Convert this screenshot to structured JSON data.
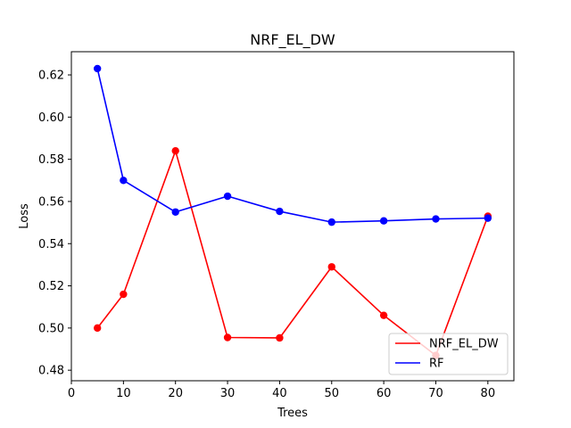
{
  "chart_data": {
    "type": "line",
    "title": "NRF_EL_DW",
    "xlabel": "Trees",
    "ylabel": "Loss",
    "xlim": [
      0,
      85
    ],
    "ylim": [
      0.475,
      0.631
    ],
    "x_ticks": [
      0,
      10,
      20,
      30,
      40,
      50,
      60,
      70,
      80
    ],
    "y_ticks": [
      0.48,
      0.5,
      0.52,
      0.54,
      0.56,
      0.58,
      0.6,
      0.62
    ],
    "x": [
      5,
      10,
      20,
      30,
      40,
      50,
      60,
      70,
      80
    ],
    "series": [
      {
        "name": "NRF_EL_DW",
        "color": "#ff0000",
        "values": [
          0.5,
          0.516,
          0.584,
          0.4955,
          0.4953,
          0.529,
          0.506,
          0.487,
          0.553
        ]
      },
      {
        "name": "RF",
        "color": "#0000ff",
        "values": [
          0.623,
          0.57,
          0.555,
          0.5625,
          0.5553,
          0.5502,
          0.5508,
          0.5517,
          0.5521
        ]
      }
    ],
    "grid": false,
    "legend_position": "lower-right"
  }
}
